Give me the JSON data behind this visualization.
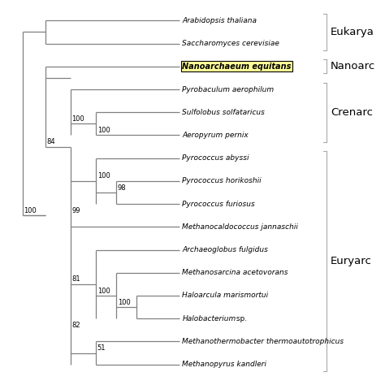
{
  "background_color": "#ffffff",
  "highlight_color": "#ffff99",
  "tree_line_color": "#808080",
  "bracket_color": "#aaaaaa",
  "font_size_taxa": 6.5,
  "font_size_node": 6.0,
  "font_size_bracket": 9.5,
  "taxa_names": [
    "Arabidopsis thaliana",
    "Saccharomyces cerevisiae",
    "Nanoarchaeum equitans",
    "Pyrobaculum aerophilum",
    "Sulfolobus solfataricus",
    "Aeropyrum pernix",
    "Pyrococcus abyssi",
    "Pyrococcus horikoshii",
    "Pyrococcus furiosus",
    "Methanocaldococcus jannaschii",
    "Archaeoglobus fulgidus",
    "Methanosarcina acetovorans",
    "Haloarcula marismortui",
    "Halobacterium sp.",
    "Methanothermobacter thermoautotrophicus",
    "Methanopyrus kandleri"
  ]
}
